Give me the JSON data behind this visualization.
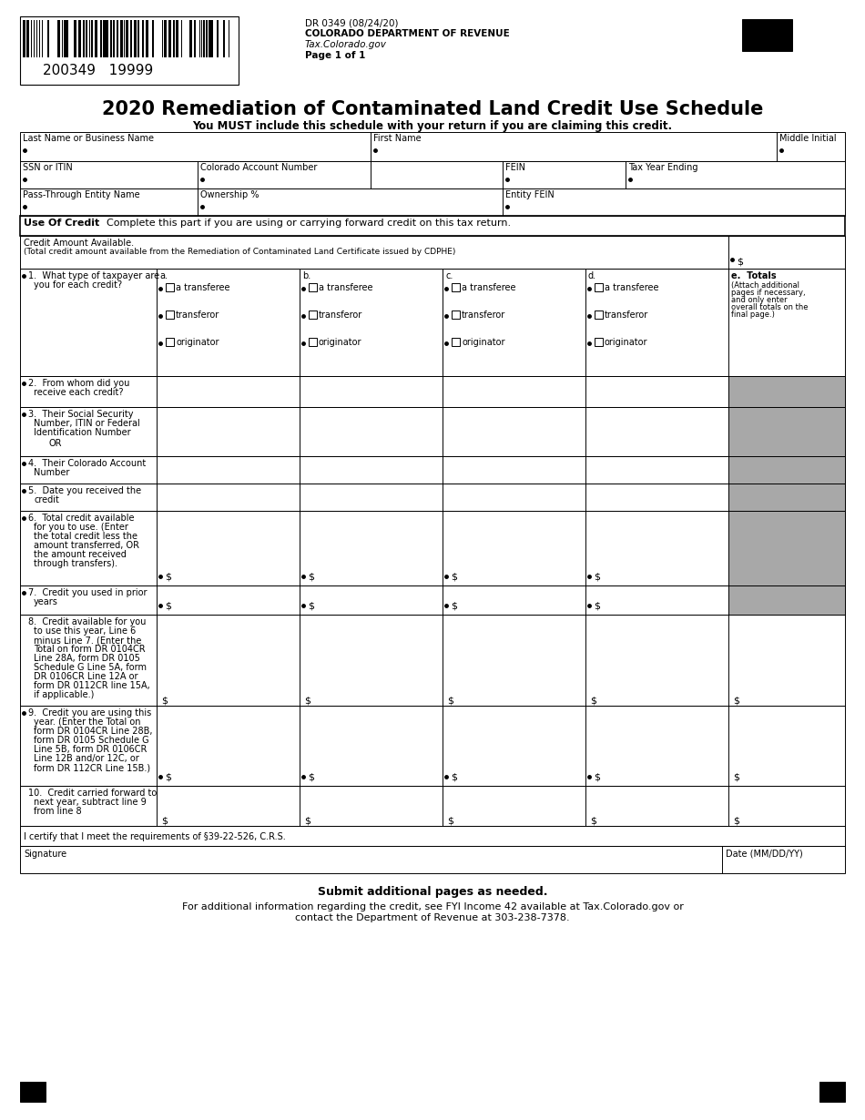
{
  "title": "2020 Remediation of Contaminated Land Credit Use Schedule",
  "subtitle": "You MUST include this schedule with your return if you are claiming this credit.",
  "form_id": "DR 0349 (08/24/20)",
  "dept": "COLORADO DEPARTMENT OF REVENUE",
  "website": "Tax.Colorado.gov",
  "page": "Page 1 of 1",
  "barcode_number": "200349   19999",
  "bg_color": "#ffffff",
  "gray_color": "#a8a8a8"
}
